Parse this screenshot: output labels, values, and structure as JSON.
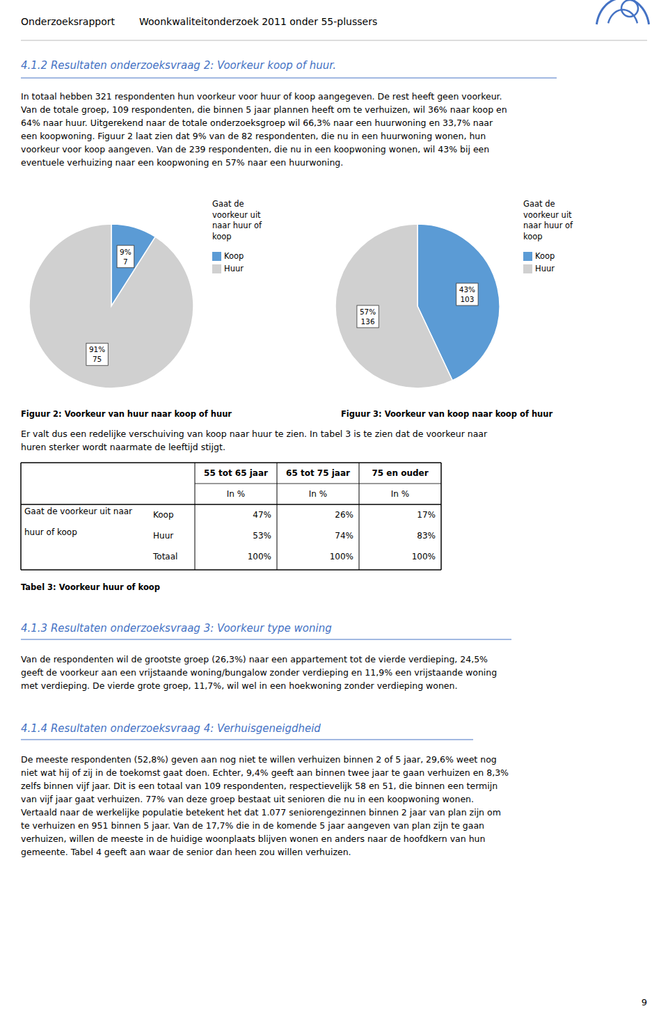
{
  "page": {
    "header": [
      "Onderzoeksrapport",
      "Woonkwaliteitonderzoek 2011 onder 55-plussers"
    ],
    "section_color": "#4472C4",
    "section_title": "4.1.2 Resultaten onderzoeksvraag 2: Voorkeur koop of huur.",
    "para1": [
      "In totaal hebben 321 respondenten hun voorkeur voor huur of koop aangegeven. De rest heeft geen voorkeur.",
      "Van de totale groep, 109 respondenten, die binnen 5 jaar plannen heeft om te verhuizen, wil 36% naar koop en",
      "64% naar huur. Uitgerekend naar de totale onderzoeksgroep wil 66,3% naar een huurwoning en 33,7% naar",
      "een koopwoning. Figuur 2 laat zien dat 9% van de 82 respondenten, die nu in een huurwoning wonen, hun",
      "voorkeur voor koop aangeven. Van de 239 respondenten, die nu in een koopwoning wonen, wil 43% bij een",
      "eventuele verhuizing naar een koopwoning en 57% naar een huurwoning."
    ],
    "para2": [
      "Er valt dus een redelijke verschuiving van koop naar huur te zien. In tabel 3 is te zien dat de voorkeur naar",
      "huren sterker wordt naarmate de leeftijd stijgt."
    ],
    "table": {
      "col_headers": [
        "55 tot 65 jaar",
        "65 tot 75 jaar",
        "75 en ouder"
      ],
      "sub_headers": [
        "In %",
        "In %",
        "In %"
      ],
      "row_label": [
        "Gaat de voorkeur uit naar",
        "huur of koop"
      ],
      "rows": [
        {
          "label": "Koop",
          "cells": [
            "47%",
            "26%",
            "17%"
          ]
        },
        {
          "label": "Huur",
          "cells": [
            "53%",
            "74%",
            "83%"
          ]
        },
        {
          "label": "Totaal",
          "cells": [
            "100%",
            "100%",
            "100%"
          ]
        }
      ],
      "caption": "Tabel 3: Voorkeur huur of koop"
    },
    "section_title2": "4.1.3 Resultaten onderzoeksvraag 3: Voorkeur type woning",
    "para3": [
      "Van de respondenten wil de grootste groep (26,3%) naar een appartement tot de vierde verdieping, 24,5%",
      "geeft de voorkeur aan een vrijstaande woning/bungalow zonder verdieping en 11,9% een vrijstaande woning",
      "met verdieping. De vierde grote groep, 11,7%, wil wel in een hoekwoning zonder verdieping wonen."
    ],
    "section_title3": "4.1.4 Resultaten onderzoeksvraag 4: Verhuisgeneigdheid",
    "para4": [
      "De meeste respondenten (52,8%) geven aan nog niet te willen verhuizen binnen 2 of 5 jaar, 29,6% weet nog",
      "niet wat hij of zij in de toekomst gaat doen. Echter, 9,4% geeft aan binnen twee jaar te gaan verhuizen en 8,3%",
      "zelfs binnen vijf jaar. Dit is een totaal van 109 respondenten, respectievelijk 58 en 51, die binnen een termijn",
      "van vijf jaar gaat verhuizen. 77% van deze groep bestaat uit senioren die nu in een koopwoning wonen.",
      "Vertaald naar de werkelijke populatie betekent het dat 1.077 seniorengezinnen binnen 2 jaar van plan zijn om",
      "te verhuizen en 951 binnen 5 jaar. Van de 17,7% die in de komende 5 jaar aangeven van plan zijn te gaan",
      "verhuizen, willen de meeste in de huidige woonplaats blijven wonen en anders naar de hoofdkern van hun",
      "gemeente. Tabel 4 geeft aan waar de senior dan heen zou willen verhuizen."
    ],
    "page_number": "9"
  },
  "chart_data": [
    {
      "type": "pie",
      "title": "Gaat de\nvoorkeur uit\nnaar huur of\nkoop",
      "categories": [
        "Koop",
        "Huur"
      ],
      "values": [
        9,
        91
      ],
      "value_labels": [
        "9%",
        "91%"
      ],
      "counts": [
        7,
        75
      ],
      "colors": [
        "#5B9BD5",
        "#D0D0D0"
      ],
      "data_labels": true,
      "legend": "right",
      "caption": "Figuur 2: Voorkeur van huur naar koop of huur"
    },
    {
      "type": "pie",
      "title": "Gaat de\nvoorkeur uit\nnaar huur of\nkoop",
      "categories": [
        "Koop",
        "Huur"
      ],
      "values": [
        43,
        57
      ],
      "value_labels": [
        "43%",
        "57%"
      ],
      "counts": [
        103,
        136
      ],
      "colors": [
        "#5B9BD5",
        "#D0D0D0"
      ],
      "data_labels": true,
      "legend": "right",
      "caption": "Figuur 3: Voorkeur van koop naar koop of huur"
    }
  ]
}
